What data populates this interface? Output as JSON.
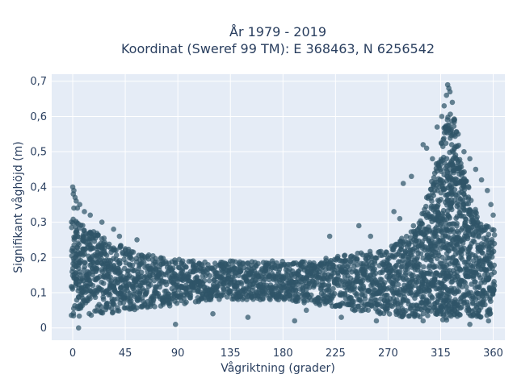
{
  "chart_data": {
    "type": "scatter",
    "title_line1": "År 1979 - 2019",
    "title_line2": "Koordinat (Sweref 99 TM): E 368463, N 6256542",
    "xlabel": "Vågriktning (grader)",
    "ylabel": "Signifikant våghöjd (m)",
    "xlim": [
      -18,
      370
    ],
    "ylim": [
      -0.035,
      0.72
    ],
    "x_ticks": [
      0,
      45,
      90,
      135,
      180,
      225,
      270,
      315,
      360
    ],
    "x_tick_labels": [
      "0",
      "45",
      "90",
      "135",
      "180",
      "225",
      "270",
      "315",
      "360"
    ],
    "y_ticks": [
      0,
      0.1,
      0.2,
      0.3,
      0.4,
      0.5,
      0.6,
      0.7
    ],
    "y_tick_labels": [
      "0",
      "0,1",
      "0,2",
      "0,3",
      "0,4",
      "0,5",
      "0,6",
      "0,7"
    ],
    "grid": true,
    "colors": {
      "marker": "#2f5468",
      "plot_bg": "#e5ecf6",
      "grid": "#ffffff",
      "text": "#2a3f5f"
    },
    "density_envelope": {
      "direction_deg": [
        0,
        10,
        20,
        30,
        45,
        60,
        80,
        100,
        120,
        140,
        160,
        180,
        200,
        220,
        240,
        260,
        270,
        280,
        290,
        300,
        310,
        315,
        320,
        325,
        330,
        340,
        350,
        360
      ],
      "upper_height_m": [
        0.31,
        0.29,
        0.27,
        0.25,
        0.23,
        0.21,
        0.2,
        0.19,
        0.19,
        0.19,
        0.19,
        0.19,
        0.19,
        0.2,
        0.21,
        0.22,
        0.23,
        0.25,
        0.28,
        0.33,
        0.44,
        0.52,
        0.6,
        0.62,
        0.52,
        0.38,
        0.3,
        0.28
      ],
      "lower_height_m": [
        0.03,
        0.03,
        0.04,
        0.04,
        0.05,
        0.05,
        0.06,
        0.07,
        0.08,
        0.08,
        0.08,
        0.08,
        0.07,
        0.06,
        0.05,
        0.04,
        0.04,
        0.03,
        0.03,
        0.03,
        0.02,
        0.02,
        0.02,
        0.02,
        0.03,
        0.03,
        0.03,
        0.04
      ]
    },
    "outliers": [
      {
        "x": 0,
        "y": 0.4
      },
      {
        "x": 1,
        "y": 0.39
      },
      {
        "x": 0.5,
        "y": 0.38
      },
      {
        "x": 2,
        "y": 0.37
      },
      {
        "x": 3,
        "y": 0.36
      },
      {
        "x": 6,
        "y": 0.35
      },
      {
        "x": 4,
        "y": 0.34
      },
      {
        "x": 1,
        "y": 0.34
      },
      {
        "x": 10,
        "y": 0.33
      },
      {
        "x": 15,
        "y": 0.32
      },
      {
        "x": 25,
        "y": 0.3
      },
      {
        "x": 35,
        "y": 0.28
      },
      {
        "x": 40,
        "y": 0.26
      },
      {
        "x": 55,
        "y": 0.25
      },
      {
        "x": 5,
        "y": 0.0
      },
      {
        "x": 88,
        "y": 0.01
      },
      {
        "x": 150,
        "y": 0.03
      },
      {
        "x": 190,
        "y": 0.02
      },
      {
        "x": 200,
        "y": 0.05
      },
      {
        "x": 220,
        "y": 0.26
      },
      {
        "x": 245,
        "y": 0.29
      },
      {
        "x": 255,
        "y": 0.26
      },
      {
        "x": 275,
        "y": 0.33
      },
      {
        "x": 280,
        "y": 0.31
      },
      {
        "x": 283,
        "y": 0.41
      },
      {
        "x": 290,
        "y": 0.43
      },
      {
        "x": 300,
        "y": 0.52
      },
      {
        "x": 303,
        "y": 0.51
      },
      {
        "x": 308,
        "y": 0.48
      },
      {
        "x": 312,
        "y": 0.57
      },
      {
        "x": 316,
        "y": 0.6
      },
      {
        "x": 318,
        "y": 0.63
      },
      {
        "x": 320,
        "y": 0.66
      },
      {
        "x": 321,
        "y": 0.69
      },
      {
        "x": 322,
        "y": 0.68
      },
      {
        "x": 323,
        "y": 0.67
      },
      {
        "x": 325,
        "y": 0.64
      },
      {
        "x": 330,
        "y": 0.55
      },
      {
        "x": 335,
        "y": 0.5
      },
      {
        "x": 340,
        "y": 0.48
      },
      {
        "x": 345,
        "y": 0.45
      },
      {
        "x": 350,
        "y": 0.42
      },
      {
        "x": 355,
        "y": 0.39
      },
      {
        "x": 358,
        "y": 0.35
      },
      {
        "x": 360,
        "y": 0.32
      },
      {
        "x": 356,
        "y": 0.02
      },
      {
        "x": 340,
        "y": 0.01
      },
      {
        "x": 300,
        "y": 0.02
      },
      {
        "x": 260,
        "y": 0.02
      },
      {
        "x": 230,
        "y": 0.03
      },
      {
        "x": 120,
        "y": 0.04
      }
    ]
  }
}
